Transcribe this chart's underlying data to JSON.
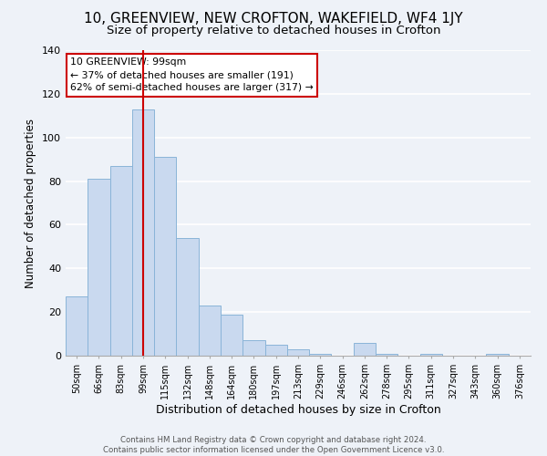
{
  "title": "10, GREENVIEW, NEW CROFTON, WAKEFIELD, WF4 1JY",
  "subtitle": "Size of property relative to detached houses in Crofton",
  "xlabel": "Distribution of detached houses by size in Crofton",
  "ylabel": "Number of detached properties",
  "bar_labels": [
    "50sqm",
    "66sqm",
    "83sqm",
    "99sqm",
    "115sqm",
    "132sqm",
    "148sqm",
    "164sqm",
    "180sqm",
    "197sqm",
    "213sqm",
    "229sqm",
    "246sqm",
    "262sqm",
    "278sqm",
    "295sqm",
    "311sqm",
    "327sqm",
    "343sqm",
    "360sqm",
    "376sqm"
  ],
  "bar_values": [
    27,
    81,
    87,
    113,
    91,
    54,
    23,
    19,
    7,
    5,
    3,
    1,
    0,
    6,
    1,
    0,
    1,
    0,
    0,
    1,
    0
  ],
  "bar_color": "#c9d9ef",
  "bar_edge_color": "#8ab4d8",
  "ylim": [
    0,
    140
  ],
  "yticks": [
    0,
    20,
    40,
    60,
    80,
    100,
    120,
    140
  ],
  "vline_x": 3,
  "vline_color": "#cc0000",
  "annotation_title": "10 GREENVIEW: 99sqm",
  "annotation_line1": "← 37% of detached houses are smaller (191)",
  "annotation_line2": "62% of semi-detached houses are larger (317) →",
  "annotation_box_color": "#ffffff",
  "annotation_box_edge": "#cc0000",
  "footer_line1": "Contains HM Land Registry data © Crown copyright and database right 2024.",
  "footer_line2": "Contains public sector information licensed under the Open Government Licence v3.0.",
  "bg_color": "#eef2f8",
  "grid_color": "#ffffff",
  "title_fontsize": 11,
  "subtitle_fontsize": 9.5,
  "xlabel_fontsize": 9,
  "ylabel_fontsize": 8.5
}
